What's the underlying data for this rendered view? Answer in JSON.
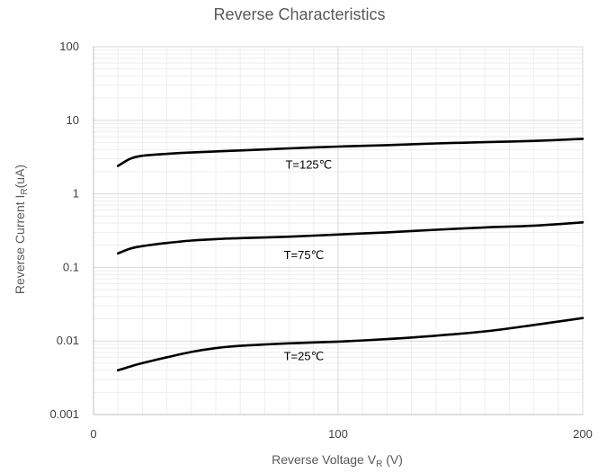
{
  "chart_data": {
    "type": "line",
    "title": "Reverse Characteristics",
    "xlabel": {
      "main": "Reverse Voltage V",
      "sub": "R",
      "tail": " (V)"
    },
    "ylabel": {
      "main": "Reverse Current I",
      "sub": "R",
      "tail": "(uA)"
    },
    "xlim": [
      0,
      200
    ],
    "ylim": [
      0.001,
      100
    ],
    "yscale": "log",
    "x_ticks": [
      0,
      100,
      200
    ],
    "x_tick_labels": [
      "0",
      "100",
      "200"
    ],
    "y_ticks": [
      0.001,
      0.01,
      0.1,
      1,
      10,
      100
    ],
    "y_tick_labels": [
      "0.001",
      "0.01",
      "0.1",
      "1",
      "10",
      "100"
    ],
    "grid": true,
    "colors": {
      "line": "#000000",
      "grid_major": "#d9d9d9",
      "grid_minor": "#eeeeee",
      "axis": "#bfbfbf"
    },
    "series": [
      {
        "label": "T=125℃",
        "label_at": {
          "x": 88,
          "y": 2.2
        },
        "x": [
          10,
          15,
          20,
          30,
          40,
          60,
          80,
          100,
          120,
          140,
          160,
          180,
          200
        ],
        "values": [
          2.4,
          3.0,
          3.3,
          3.5,
          3.65,
          3.9,
          4.15,
          4.4,
          4.6,
          4.85,
          5.05,
          5.25,
          5.6
        ]
      },
      {
        "label": "T=75℃",
        "label_at": {
          "x": 86,
          "y": 0.13
        },
        "x": [
          10,
          15,
          20,
          30,
          40,
          50,
          60,
          80,
          100,
          120,
          140,
          160,
          180,
          200
        ],
        "values": [
          0.155,
          0.18,
          0.195,
          0.215,
          0.232,
          0.243,
          0.25,
          0.262,
          0.28,
          0.3,
          0.325,
          0.35,
          0.37,
          0.41
        ]
      },
      {
        "label": "T=25℃",
        "label_at": {
          "x": 86,
          "y": 0.0055
        },
        "x": [
          10,
          15,
          20,
          30,
          40,
          50,
          60,
          80,
          100,
          120,
          140,
          160,
          180,
          200
        ],
        "values": [
          0.004,
          0.0045,
          0.005,
          0.006,
          0.0071,
          0.008,
          0.0086,
          0.0093,
          0.0098,
          0.0106,
          0.0118,
          0.0135,
          0.0165,
          0.0205
        ]
      }
    ]
  }
}
